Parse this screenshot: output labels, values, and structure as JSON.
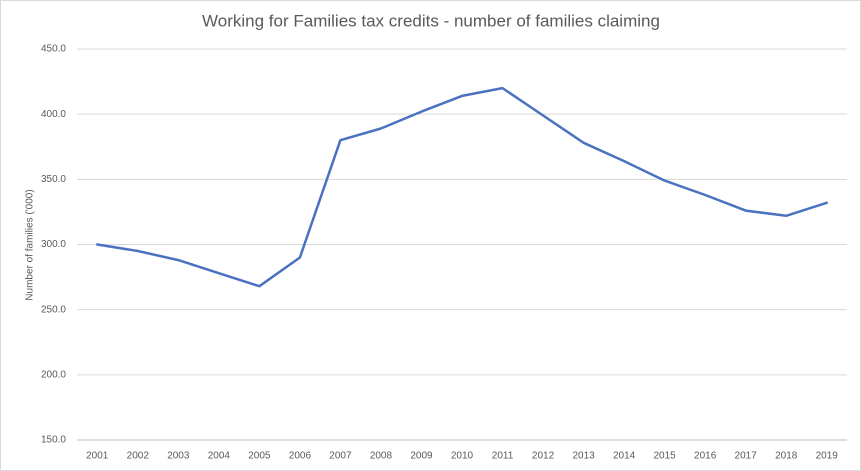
{
  "chart_data": {
    "type": "line",
    "title": "Working for Families tax credits - number of families claiming",
    "y_label": "Number of families ('000)",
    "categories": [
      "2001",
      "2002",
      "2003",
      "2004",
      "2005",
      "2006",
      "2007",
      "2008",
      "2009",
      "2010",
      "2011",
      "2012",
      "2013",
      "2014",
      "2015",
      "2016",
      "2017",
      "2018",
      "2019"
    ],
    "values": [
      300,
      295,
      288,
      278,
      268,
      290,
      380,
      389,
      402,
      414,
      420,
      399,
      378,
      364,
      349,
      338,
      326,
      322,
      332
    ],
    "color": "#4a72c0",
    "ylim": [
      150,
      450
    ],
    "yticks": [
      {
        "value": 150,
        "label": "150.0"
      },
      {
        "value": 200,
        "label": "200.0"
      },
      {
        "value": 250,
        "label": "250.0"
      },
      {
        "value": 300,
        "label": "300.0"
      },
      {
        "value": 350,
        "label": "350.0"
      },
      {
        "value": 400,
        "label": "400.0"
      },
      {
        "value": 450,
        "label": "450.0"
      }
    ],
    "grid": true
  }
}
